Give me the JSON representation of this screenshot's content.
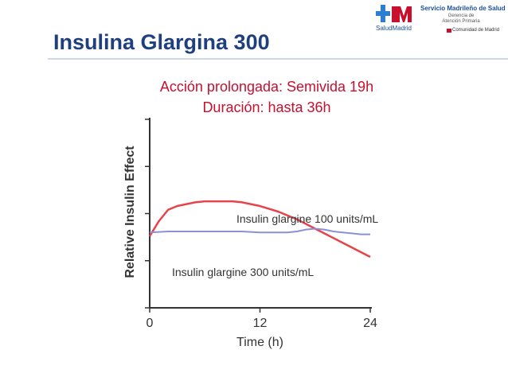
{
  "slide": {
    "title": "Insulina Glargina 300",
    "subtitle_line1": "Acción prolongada:  Semivida 19h",
    "subtitle_line2": "Duración: hasta 36h"
  },
  "logo": {
    "caption": "SaludMadrid",
    "org_name": "Servicio Madrileño de Salud",
    "sub_line1": "Gerencia de",
    "sub_line2": "Atención Primaria",
    "community": "Comunidad de Madrid"
  },
  "colors": {
    "title": "#1f3f7f",
    "subtitle": "#c8102e",
    "series_100": "#e8434b",
    "series_300": "#8b8fd6"
  },
  "chart_data": {
    "type": "line",
    "title": "",
    "xlabel": "Time (h)",
    "ylabel": "Relative Insulin Effect",
    "xlim": [
      0,
      24
    ],
    "xticks": [
      "0",
      "12",
      "24"
    ],
    "ylim": [
      0,
      1
    ],
    "y_tick_labels": false,
    "grid": false,
    "series": [
      {
        "name": "Insulin glargine 100 units/mL",
        "color": "#e8434b",
        "x": [
          0,
          1,
          2,
          3,
          4,
          5,
          6,
          7,
          8,
          9,
          10,
          11,
          12,
          13,
          14,
          15,
          16,
          17,
          18,
          19,
          20,
          21,
          22,
          23,
          24
        ],
        "y": [
          0.38,
          0.46,
          0.52,
          0.54,
          0.55,
          0.56,
          0.565,
          0.565,
          0.565,
          0.565,
          0.56,
          0.55,
          0.54,
          0.525,
          0.51,
          0.49,
          0.47,
          0.445,
          0.42,
          0.395,
          0.37,
          0.345,
          0.32,
          0.295,
          0.27
        ]
      },
      {
        "name": "Insulin glargine 300 units/mL",
        "color": "#8b8fd6",
        "x": [
          0,
          2,
          4,
          6,
          8,
          10,
          12,
          14,
          15,
          16,
          17,
          18,
          19,
          20,
          21,
          22,
          23,
          24
        ],
        "y": [
          0.4,
          0.405,
          0.405,
          0.405,
          0.405,
          0.405,
          0.4,
          0.4,
          0.4,
          0.405,
          0.415,
          0.42,
          0.415,
          0.405,
          0.4,
          0.395,
          0.39,
          0.39
        ]
      }
    ]
  }
}
